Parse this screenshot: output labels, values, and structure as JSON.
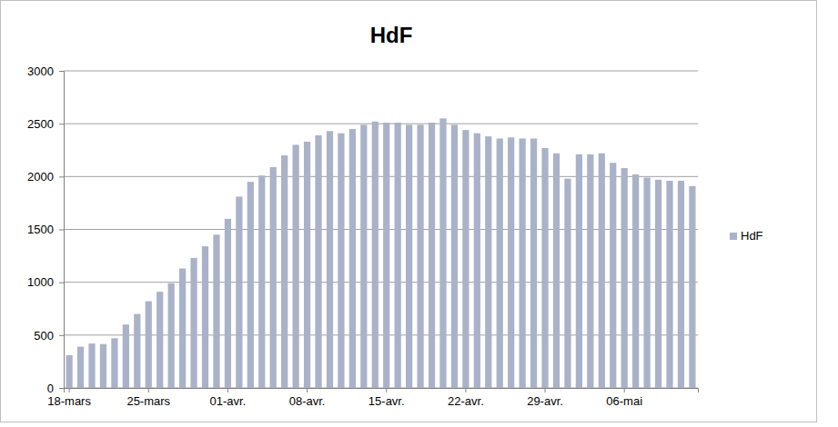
{
  "chart_data": {
    "type": "bar",
    "title": "HdF",
    "categories": [
      "18-mars",
      null,
      null,
      null,
      null,
      null,
      null,
      "25-mars",
      null,
      null,
      null,
      null,
      null,
      null,
      "01-avr.",
      null,
      null,
      null,
      null,
      null,
      null,
      "08-avr.",
      null,
      null,
      null,
      null,
      null,
      null,
      "15-avr.",
      null,
      null,
      null,
      null,
      null,
      null,
      "22-avr.",
      null,
      null,
      null,
      null,
      null,
      null,
      "29-avr.",
      null,
      null,
      null,
      null,
      null,
      null,
      "06-mai",
      null,
      null,
      null,
      null,
      null,
      null
    ],
    "series": [
      {
        "name": "HdF",
        "color": "#a9b2c8",
        "values": [
          310,
          390,
          420,
          415,
          470,
          600,
          700,
          820,
          910,
          990,
          1130,
          1230,
          1340,
          1450,
          1600,
          1810,
          1950,
          2010,
          2090,
          2200,
          2300,
          2330,
          2390,
          2430,
          2410,
          2450,
          2490,
          2520,
          2510,
          2510,
          2490,
          2490,
          2510,
          2550,
          2490,
          2440,
          2410,
          2380,
          2360,
          2370,
          2360,
          2360,
          2270,
          2220,
          1980,
          2210,
          2210,
          2220,
          2130,
          2080,
          2020,
          1990,
          1970,
          1960,
          1960,
          1910
        ]
      }
    ],
    "ylim": [
      0,
      3000
    ],
    "yticks": [
      0,
      500,
      1000,
      1500,
      2000,
      2500,
      3000
    ],
    "grid": true,
    "legend": "right"
  }
}
